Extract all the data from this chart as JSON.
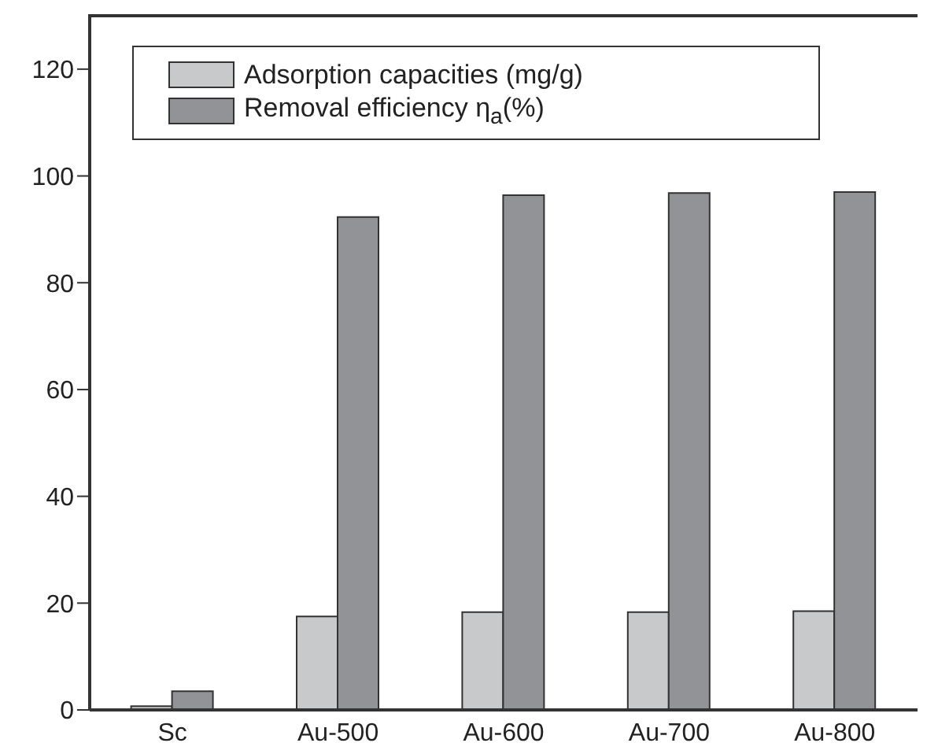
{
  "chart_data": {
    "type": "bar",
    "categories": [
      "Sc",
      "Au-500",
      "Au-600",
      "Au-700",
      "Au-800"
    ],
    "series": [
      {
        "name": "Adsorption capacities (mg/g)",
        "color": "#c8c9cb",
        "values": [
          0.7,
          17.5,
          18.3,
          18.3,
          18.5
        ]
      },
      {
        "name": "Removal efficiency η$_{a}$(%)",
        "color": "#929397",
        "values": [
          3.5,
          92.3,
          96.4,
          96.8,
          97.0
        ]
      }
    ],
    "ylim": [
      0,
      130
    ],
    "yticks": [
      0,
      20,
      40,
      60,
      80,
      100,
      120
    ],
    "legend": "top left"
  }
}
